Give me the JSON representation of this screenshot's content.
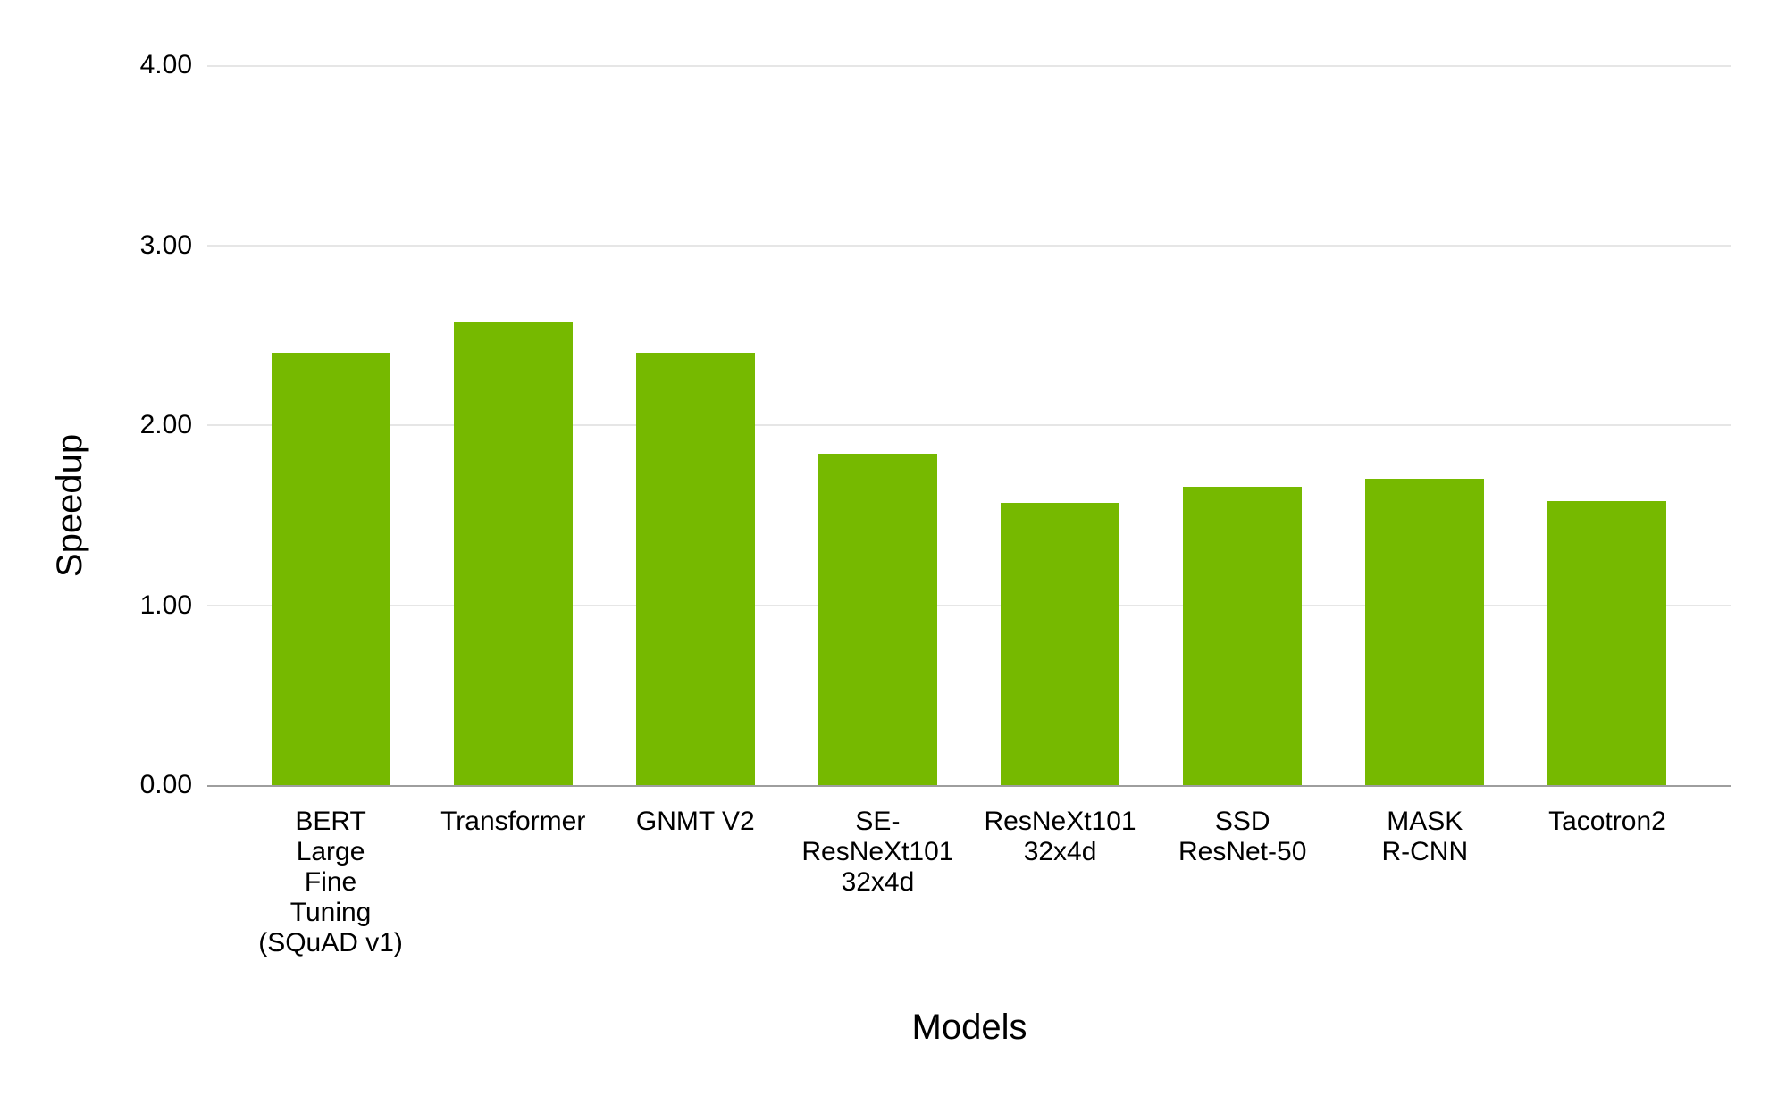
{
  "chart_data": {
    "type": "bar",
    "title": "",
    "categories": [
      "BERT Large Fine Tuning (SQuAD v1)",
      "Transformer",
      "GNMT V2",
      "SE-ResNeXt101 32x4d",
      "ResNeXt101 32x4d",
      "SSD ResNet-50",
      "MASK R-CNN",
      "Tacotron2"
    ],
    "category_display": [
      "BERT\nLarge\nFine\nTuning\n(SQuAD v1)",
      "Transformer",
      "GNMT V2",
      "SE-\nResNeXt101\n32x4d",
      "ResNeXt101\n32x4d",
      "SSD\nResNet-50",
      "MASK\nR-CNN",
      "Tacotron2"
    ],
    "values": [
      2.4,
      2.57,
      2.4,
      1.84,
      1.57,
      1.66,
      1.7,
      1.58
    ],
    "xlabel": "Models",
    "ylabel": "Speedup",
    "ylim": [
      0,
      4
    ],
    "yticks": [
      0,
      1,
      2,
      3,
      4
    ],
    "ytick_labels": [
      "0.00",
      "1.00",
      "2.00",
      "3.00",
      "4.00"
    ],
    "bar_color": "#76b900",
    "grid": true,
    "legend_position": "none"
  },
  "colors": {
    "bar": "#76b900",
    "gridline": "#e6e6e6",
    "baseline": "#9e9e9e",
    "text": "#000000",
    "background": "#ffffff"
  }
}
